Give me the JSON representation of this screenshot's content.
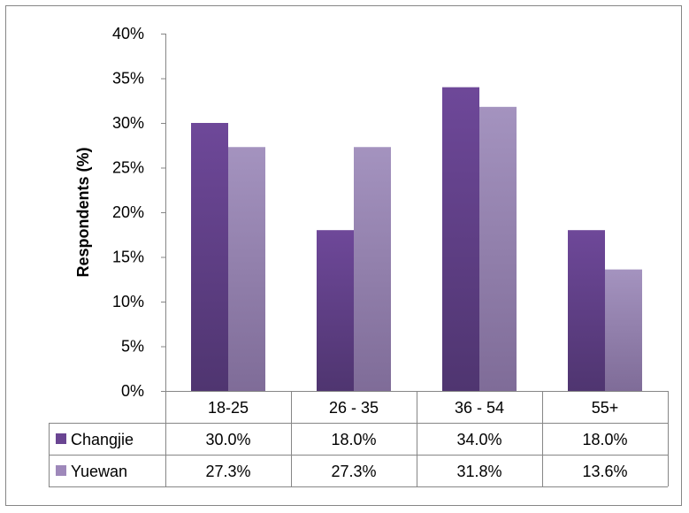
{
  "chart_data": {
    "type": "bar",
    "categories": [
      "18-25",
      "26 - 35",
      "36 - 54",
      "55+"
    ],
    "series": [
      {
        "name": "Changjie",
        "values": [
          30.0,
          18.0,
          34.0,
          18.0
        ],
        "labels": [
          "30.0%",
          "18.0%",
          "34.0%",
          "18.0%"
        ],
        "color": "#6A4592"
      },
      {
        "name": "Yuewan",
        "values": [
          27.3,
          27.3,
          31.8,
          13.6
        ],
        "labels": [
          "27.3%",
          "27.3%",
          "31.8%",
          "13.6%"
        ],
        "color": "#9E88BA"
      }
    ],
    "ylabel": "Respondents (%)",
    "ylim": [
      0,
      40
    ],
    "yticks": [
      "0%",
      "5%",
      "10%",
      "15%",
      "20%",
      "25%",
      "30%",
      "35%",
      "40%"
    ],
    "grid": false,
    "legend": "data-table"
  }
}
